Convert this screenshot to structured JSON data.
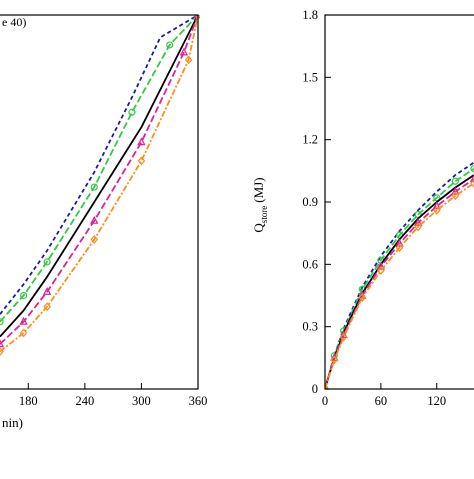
{
  "chart_data": [
    {
      "type": "line",
      "panel": "left",
      "legend_fragment": "e 40)",
      "xlabel_fragment": "nin)",
      "xlim": [
        150,
        360
      ],
      "ylim": [
        0,
        1
      ],
      "x_ticks": [
        "180",
        "240",
        "300",
        "360"
      ],
      "x_tick_values": [
        180,
        240,
        300,
        360
      ],
      "grid": false,
      "series": [
        {
          "color": "#1a1aa8",
          "dash": "4,3",
          "marker": "none",
          "x": [
            150,
            175,
            200,
            250,
            290,
            320,
            360
          ],
          "y": [
            0.2,
            0.28,
            0.37,
            0.58,
            0.78,
            0.94,
            1.0
          ]
        },
        {
          "color": "#2ecc40",
          "dash": "7,3",
          "marker": "circle",
          "x": [
            150,
            175,
            200,
            250,
            290,
            330,
            360
          ],
          "y": [
            0.18,
            0.25,
            0.34,
            0.54,
            0.74,
            0.92,
            1.0
          ]
        },
        {
          "color": "#000000",
          "dash": "none",
          "marker": "none",
          "x": [
            150,
            175,
            200,
            250,
            300,
            340,
            360
          ],
          "y": [
            0.14,
            0.21,
            0.3,
            0.5,
            0.7,
            0.9,
            1.0
          ]
        },
        {
          "color": "#e0209a",
          "dash": "7,3",
          "marker": "triangle",
          "x": [
            150,
            175,
            200,
            250,
            300,
            345,
            360
          ],
          "y": [
            0.12,
            0.18,
            0.26,
            0.45,
            0.66,
            0.9,
            1.0
          ]
        },
        {
          "color": "#ff8c1a",
          "dash": "6,2,2,2",
          "marker": "diamond",
          "x": [
            150,
            175,
            200,
            250,
            300,
            350,
            360
          ],
          "y": [
            0.1,
            0.15,
            0.22,
            0.4,
            0.61,
            0.88,
            1.0
          ]
        }
      ]
    },
    {
      "type": "line",
      "panel": "right",
      "ylabel": "Q",
      "ylabel_subscript": "store",
      "ylabel_unit": "(MJ)",
      "xlim": [
        0,
        160
      ],
      "ylim": [
        0,
        1.8
      ],
      "x_ticks": [
        "0",
        "60",
        "120"
      ],
      "x_tick_values": [
        0,
        60,
        120
      ],
      "y_ticks": [
        "0",
        "0.3",
        "0.6",
        "0.9",
        "1.2",
        "1.5",
        "1.8"
      ],
      "y_tick_values": [
        0,
        0.3,
        0.6,
        0.9,
        1.2,
        1.5,
        1.8
      ],
      "grid": false,
      "series": [
        {
          "color": "#1a1aa8",
          "dash": "4,3",
          "marker": "none",
          "x": [
            0,
            10,
            20,
            40,
            60,
            80,
            100,
            120,
            140,
            160
          ],
          "y": [
            0,
            0.16,
            0.29,
            0.49,
            0.64,
            0.76,
            0.86,
            0.95,
            1.03,
            1.09
          ]
        },
        {
          "color": "#2ecc40",
          "dash": "7,3",
          "marker": "circle",
          "x": [
            0,
            10,
            20,
            40,
            60,
            80,
            100,
            120,
            140,
            160
          ],
          "y": [
            0,
            0.16,
            0.28,
            0.48,
            0.62,
            0.74,
            0.84,
            0.92,
            1.0,
            1.06
          ]
        },
        {
          "color": "#000000",
          "dash": "none",
          "marker": "none",
          "x": [
            0,
            10,
            20,
            40,
            60,
            80,
            100,
            120,
            140,
            160
          ],
          "y": [
            0,
            0.15,
            0.27,
            0.46,
            0.6,
            0.72,
            0.82,
            0.9,
            0.97,
            1.03
          ]
        },
        {
          "color": "#e0209a",
          "dash": "7,3",
          "marker": "triangle",
          "x": [
            0,
            10,
            20,
            40,
            60,
            80,
            100,
            120,
            140,
            160
          ],
          "y": [
            0,
            0.15,
            0.26,
            0.45,
            0.59,
            0.7,
            0.8,
            0.88,
            0.95,
            1.01
          ]
        },
        {
          "color": "#ff8c1a",
          "dash": "6,2,2,2",
          "marker": "diamond",
          "x": [
            0,
            10,
            20,
            40,
            60,
            80,
            100,
            120,
            140,
            160
          ],
          "y": [
            0,
            0.14,
            0.25,
            0.44,
            0.57,
            0.68,
            0.78,
            0.86,
            0.93,
            0.99
          ]
        }
      ]
    }
  ]
}
